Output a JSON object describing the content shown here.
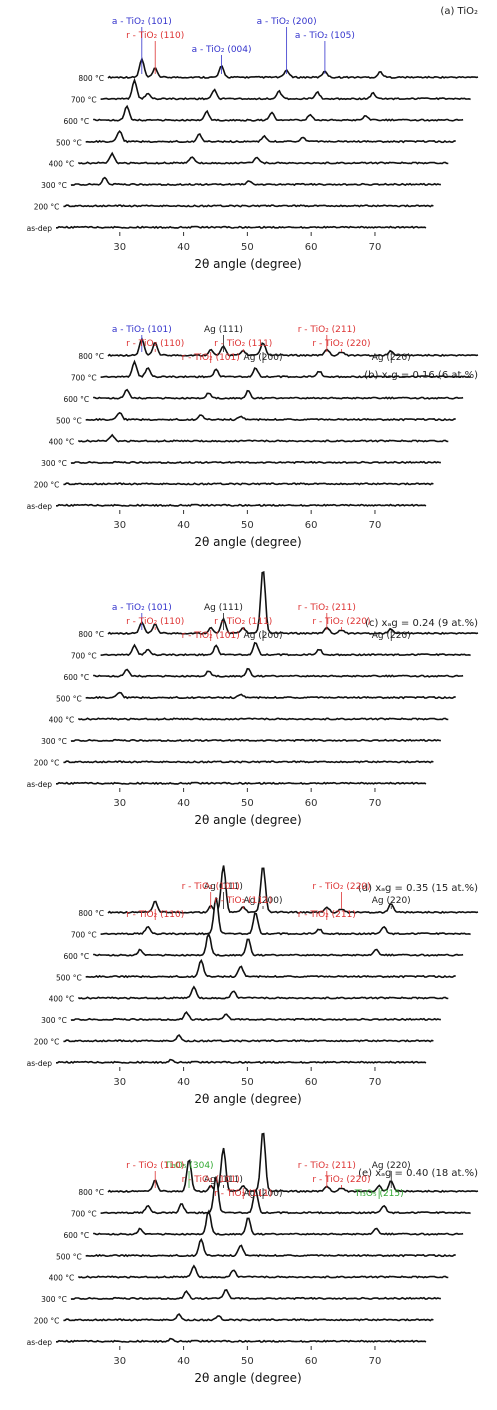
{
  "chart_data": [
    {
      "type": "line",
      "panel": "a",
      "title": "(a) TiO₂",
      "xlabel": "2θ angle (degree)",
      "xlim": [
        20,
        78
      ],
      "xticks": [
        30,
        40,
        50,
        60,
        70
      ],
      "series": [
        {
          "name": "800 °C",
          "peaks": [
            [
              25.3,
              1.0
            ],
            [
              27.4,
              0.5
            ],
            [
              37.8,
              0.6
            ],
            [
              48.0,
              0.4
            ],
            [
              54.0,
              0.35
            ],
            [
              62.7,
              0.3
            ]
          ]
        },
        {
          "name": "700 °C",
          "peaks": [
            [
              25.3,
              1.0
            ],
            [
              27.4,
              0.3
            ],
            [
              37.8,
              0.5
            ],
            [
              48.0,
              0.4
            ],
            [
              54.0,
              0.35
            ],
            [
              62.7,
              0.3
            ]
          ]
        },
        {
          "name": "600 °C",
          "peaks": [
            [
              25.3,
              0.8
            ],
            [
              37.8,
              0.5
            ],
            [
              48.0,
              0.4
            ],
            [
              54.0,
              0.3
            ],
            [
              62.7,
              0.25
            ]
          ]
        },
        {
          "name": "500 °C",
          "peaks": [
            [
              25.3,
              0.6
            ],
            [
              37.8,
              0.4
            ],
            [
              48.0,
              0.3
            ],
            [
              54.0,
              0.25
            ]
          ]
        },
        {
          "name": "400 °C",
          "peaks": [
            [
              25.3,
              0.5
            ],
            [
              37.8,
              0.35
            ],
            [
              48.0,
              0.3
            ]
          ]
        },
        {
          "name": "300 °C",
          "peaks": [
            [
              25.3,
              0.4
            ],
            [
              48.0,
              0.2
            ]
          ]
        },
        {
          "name": "200 °C",
          "peaks": []
        },
        {
          "name": "as-dep",
          "peaks": []
        }
      ],
      "annotations": [
        {
          "text": "a - TiO₂ (101)",
          "color": "#3333cc",
          "x": 25.3
        },
        {
          "text": "r - TiO₂ (110)",
          "color": "#dd3333",
          "x": 27.4
        },
        {
          "text": "a - TiO₂ (004)",
          "color": "#3333cc",
          "x": 37.8
        },
        {
          "text": "a - TiO₂ (200)",
          "color": "#3333cc",
          "x": 48.0
        },
        {
          "text": "a - TiO₂ (105)",
          "color": "#3333cc",
          "x": 54.0
        }
      ]
    },
    {
      "type": "line",
      "panel": "b",
      "title": "(b) xₐg = 0.16 (6 at.%)",
      "xlabel": "2θ angle (degree)",
      "xlim": [
        20,
        78
      ],
      "xticks": [
        30,
        40,
        50,
        60,
        70
      ],
      "series": [
        {
          "name": "800 °C",
          "peaks": [
            [
              25.3,
              0.9
            ],
            [
              27.4,
              0.7
            ],
            [
              36.1,
              0.3
            ],
            [
              38.1,
              0.5
            ],
            [
              41.2,
              0.25
            ],
            [
              44.3,
              0.7
            ],
            [
              54.3,
              0.35
            ],
            [
              56.6,
              0.2
            ],
            [
              64.4,
              0.25
            ]
          ]
        },
        {
          "name": "700 °C",
          "peaks": [
            [
              25.3,
              0.8
            ],
            [
              27.4,
              0.5
            ],
            [
              38.1,
              0.4
            ],
            [
              44.3,
              0.5
            ],
            [
              54.3,
              0.3
            ]
          ]
        },
        {
          "name": "600 °C",
          "peaks": [
            [
              25.3,
              0.5
            ],
            [
              38.1,
              0.3
            ],
            [
              44.3,
              0.4
            ]
          ]
        },
        {
          "name": "500 °C",
          "peaks": [
            [
              25.3,
              0.4
            ],
            [
              38.1,
              0.25
            ],
            [
              44.3,
              0.2
            ]
          ]
        },
        {
          "name": "400 °C",
          "peaks": [
            [
              25.3,
              0.3
            ]
          ]
        },
        {
          "name": "300 °C",
          "peaks": []
        },
        {
          "name": "200 °C",
          "peaks": []
        },
        {
          "name": "as-dep",
          "peaks": []
        }
      ],
      "annotations": [
        {
          "text": "a - TiO₂ (101)",
          "color": "#3333cc",
          "x": 25.3
        },
        {
          "text": "r - TiO₂ (110)",
          "color": "#dd3333",
          "x": 27.4
        },
        {
          "text": "r - TiO₂ (101)",
          "color": "#dd3333",
          "x": 36.1
        },
        {
          "text": "Ag (111)",
          "color": "#222222",
          "x": 38.1
        },
        {
          "text": "r - TiO₂ (111)",
          "color": "#dd3333",
          "x": 41.2
        },
        {
          "text": "Ag (200)",
          "color": "#222222",
          "x": 44.3
        },
        {
          "text": "r - TiO₂ (211)",
          "color": "#dd3333",
          "x": 54.3
        },
        {
          "text": "r - TiO₂ (220)",
          "color": "#dd3333",
          "x": 56.6
        },
        {
          "text": "Ag (220)",
          "color": "#222222",
          "x": 64.4
        }
      ]
    },
    {
      "type": "line",
      "panel": "c",
      "title": "(c) xₐg = 0.24 (9 at.%)",
      "xlabel": "2θ angle (degree)",
      "xlim": [
        20,
        78
      ],
      "xticks": [
        30,
        40,
        50,
        60,
        70
      ],
      "series": [
        {
          "name": "800 °C",
          "peaks": [
            [
              25.3,
              0.6
            ],
            [
              27.4,
              0.5
            ],
            [
              36.1,
              0.3
            ],
            [
              38.1,
              0.8
            ],
            [
              41.2,
              0.3
            ],
            [
              44.3,
              3.6
            ],
            [
              54.3,
              0.35
            ],
            [
              56.6,
              0.2
            ],
            [
              64.4,
              0.25
            ]
          ]
        },
        {
          "name": "700 °C",
          "peaks": [
            [
              25.3,
              0.5
            ],
            [
              27.4,
              0.3
            ],
            [
              38.1,
              0.5
            ],
            [
              44.3,
              0.7
            ],
            [
              54.3,
              0.3
            ]
          ]
        },
        {
          "name": "600 °C",
          "peaks": [
            [
              25.3,
              0.4
            ],
            [
              38.1,
              0.3
            ],
            [
              44.3,
              0.4
            ]
          ]
        },
        {
          "name": "500 °C",
          "peaks": [
            [
              25.3,
              0.3
            ],
            [
              44.3,
              0.2
            ]
          ]
        },
        {
          "name": "400 °C",
          "peaks": []
        },
        {
          "name": "300 °C",
          "peaks": []
        },
        {
          "name": "200 °C",
          "peaks": []
        },
        {
          "name": "as-dep",
          "peaks": []
        }
      ],
      "annotations": [
        {
          "text": "a - TiO₂ (101)",
          "color": "#3333cc",
          "x": 25.3
        },
        {
          "text": "r - TiO₂ (110)",
          "color": "#dd3333",
          "x": 27.4
        },
        {
          "text": "r - TiO₂ (101)",
          "color": "#dd3333",
          "x": 36.1
        },
        {
          "text": "Ag (111)",
          "color": "#222222",
          "x": 38.1
        },
        {
          "text": "r - TiO₂ (111)",
          "color": "#dd3333",
          "x": 41.2
        },
        {
          "text": "Ag (200)",
          "color": "#222222",
          "x": 44.3
        },
        {
          "text": "r - TiO₂ (211)",
          "color": "#dd3333",
          "x": 54.3
        },
        {
          "text": "r - TiO₂ (220)",
          "color": "#dd3333",
          "x": 56.6
        },
        {
          "text": "Ag (220)",
          "color": "#222222",
          "x": 64.4
        }
      ]
    },
    {
      "type": "line",
      "panel": "d",
      "title": "(d) xₐg = 0.35 (15 at.%)",
      "xlabel": "2θ angle (degree)",
      "xlim": [
        20,
        78
      ],
      "xticks": [
        30,
        40,
        50,
        60,
        70
      ],
      "series": [
        {
          "name": "800 °C",
          "peaks": [
            [
              27.4,
              0.6
            ],
            [
              36.1,
              0.35
            ],
            [
              38.1,
              2.6
            ],
            [
              41.2,
              0.3
            ],
            [
              44.3,
              2.6
            ],
            [
              54.3,
              0.3
            ],
            [
              56.6,
              0.2
            ],
            [
              64.4,
              0.5
            ]
          ]
        },
        {
          "name": "700 °C",
          "peaks": [
            [
              27.4,
              0.4
            ],
            [
              38.1,
              2.0
            ],
            [
              44.3,
              1.2
            ],
            [
              54.3,
              0.25
            ],
            [
              64.4,
              0.4
            ]
          ]
        },
        {
          "name": "600 °C",
          "peaks": [
            [
              27.4,
              0.3
            ],
            [
              38.1,
              1.2
            ],
            [
              44.3,
              0.9
            ],
            [
              64.4,
              0.3
            ]
          ]
        },
        {
          "name": "500 °C",
          "peaks": [
            [
              38.1,
              0.9
            ],
            [
              44.3,
              0.6
            ]
          ]
        },
        {
          "name": "400 °C",
          "peaks": [
            [
              38.1,
              0.6
            ],
            [
              44.3,
              0.4
            ]
          ]
        },
        {
          "name": "300 °C",
          "peaks": [
            [
              38.1,
              0.4
            ],
            [
              44.3,
              0.3
            ]
          ]
        },
        {
          "name": "200 °C",
          "peaks": [
            [
              38.1,
              0.3
            ]
          ]
        },
        {
          "name": "as-dep",
          "peaks": [
            [
              38.1,
              0.15
            ]
          ]
        }
      ],
      "annotations": [
        {
          "text": "Ag (111)",
          "color": "#222222",
          "x": 38.1
        },
        {
          "text": "Ag (200)",
          "color": "#222222",
          "x": 44.3
        },
        {
          "text": "r - TiO₂ (110)",
          "color": "#dd3333",
          "x": 27.4
        },
        {
          "text": "r - TiO₂ (101)",
          "color": "#dd3333",
          "x": 36.1
        },
        {
          "text": "r - TiO₂ (111)",
          "color": "#dd3333",
          "x": 41.2
        },
        {
          "text": "r - TiO₂ (211)",
          "color": "#dd3333",
          "x": 54.3
        },
        {
          "text": "r - TiO₂ (220)",
          "color": "#dd3333",
          "x": 56.6
        },
        {
          "text": "Ag (220)",
          "color": "#222222",
          "x": 64.4
        }
      ]
    },
    {
      "type": "line",
      "panel": "e",
      "title": "(e) xₐg = 0.40 (18 at.%)",
      "xlabel": "2θ angle (degree)",
      "xlim": [
        20,
        78
      ],
      "xticks": [
        30,
        40,
        50,
        60,
        70
      ],
      "series": [
        {
          "name": "800 °C",
          "peaks": [
            [
              27.4,
              0.6
            ],
            [
              32.7,
              1.8
            ],
            [
              36.1,
              0.3
            ],
            [
              38.1,
              2.4
            ],
            [
              41.2,
              0.3
            ],
            [
              44.3,
              3.4
            ],
            [
              54.3,
              0.3
            ],
            [
              56.6,
              0.2
            ],
            [
              62.5,
              0.3
            ],
            [
              64.4,
              0.6
            ]
          ]
        },
        {
          "name": "700 °C",
          "peaks": [
            [
              27.4,
              0.4
            ],
            [
              32.7,
              0.5
            ],
            [
              38.1,
              2.0
            ],
            [
              44.3,
              1.3
            ],
            [
              64.4,
              0.4
            ]
          ]
        },
        {
          "name": "600 °C",
          "peaks": [
            [
              27.4,
              0.3
            ],
            [
              38.1,
              1.3
            ],
            [
              44.3,
              0.9
            ],
            [
              64.4,
              0.3
            ]
          ]
        },
        {
          "name": "500 °C",
          "peaks": [
            [
              38.1,
              0.9
            ],
            [
              44.3,
              0.6
            ]
          ]
        },
        {
          "name": "400 °C",
          "peaks": [
            [
              38.1,
              0.6
            ],
            [
              44.3,
              0.4
            ]
          ]
        },
        {
          "name": "300 °C",
          "peaks": [
            [
              38.1,
              0.4
            ],
            [
              44.3,
              0.5
            ]
          ]
        },
        {
          "name": "200 °C",
          "peaks": [
            [
              38.1,
              0.3
            ],
            [
              44.3,
              0.2
            ]
          ]
        },
        {
          "name": "as-dep",
          "peaks": [
            [
              38.1,
              0.15
            ]
          ]
        }
      ],
      "annotations": [
        {
          "text": "Ti₃O₅ (304)",
          "color": "#33aa33",
          "x": 32.7
        },
        {
          "text": "Ag (111)",
          "color": "#222222",
          "x": 38.1
        },
        {
          "text": "Ag (200)",
          "color": "#222222",
          "x": 44.3
        },
        {
          "text": "r - TiO₂ (110)",
          "color": "#dd3333",
          "x": 27.4
        },
        {
          "text": "r - TiO₂ (101)",
          "color": "#dd3333",
          "x": 36.1
        },
        {
          "text": "r - TiO₂ (111)",
          "color": "#dd3333",
          "x": 41.2
        },
        {
          "text": "r - TiO₂ (211)",
          "color": "#dd3333",
          "x": 54.3
        },
        {
          "text": "r - TiO₂ (220)",
          "color": "#dd3333",
          "x": 56.6
        },
        {
          "text": "Ti₃O₅ (215)",
          "color": "#33aa33",
          "x": 62.5
        },
        {
          "text": "Ag (220)",
          "color": "#222222",
          "x": 64.4
        }
      ]
    }
  ]
}
